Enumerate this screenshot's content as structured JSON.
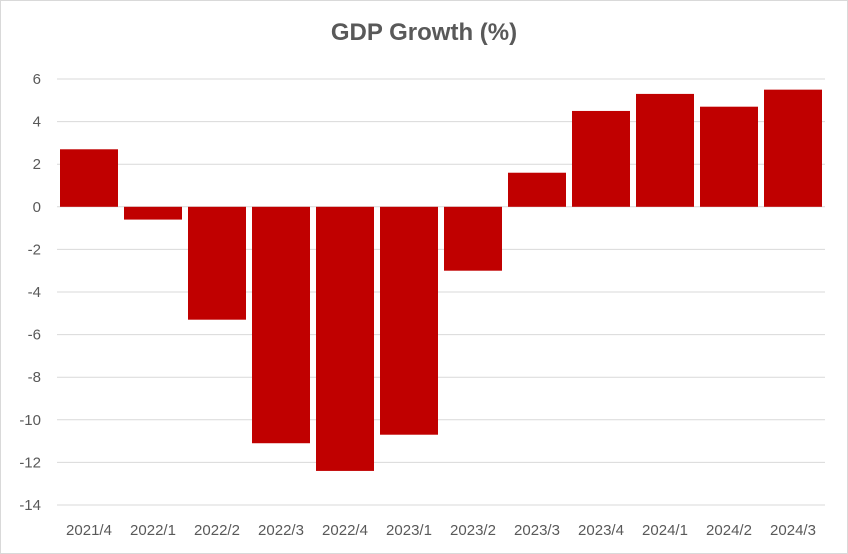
{
  "chart_data": {
    "type": "bar",
    "title": "GDP Growth (%)",
    "xlabel": "",
    "ylabel": "",
    "categories": [
      "2021/4",
      "2022/1",
      "2022/2",
      "2022/3",
      "2022/4",
      "2023/1",
      "2023/2",
      "2023/3",
      "2023/4",
      "2024/1",
      "2024/2",
      "2024/3"
    ],
    "values": [
      2.7,
      -0.6,
      -5.3,
      -11.1,
      -12.4,
      -10.7,
      -3.0,
      1.6,
      4.5,
      5.3,
      4.7,
      5.5
    ],
    "ylim": [
      -14,
      6
    ],
    "yticks": [
      6,
      4,
      2,
      0,
      -2,
      -4,
      -6,
      -8,
      -10,
      -12,
      -14
    ],
    "grid": true,
    "legend": "none",
    "bar_color": "#C00000"
  }
}
